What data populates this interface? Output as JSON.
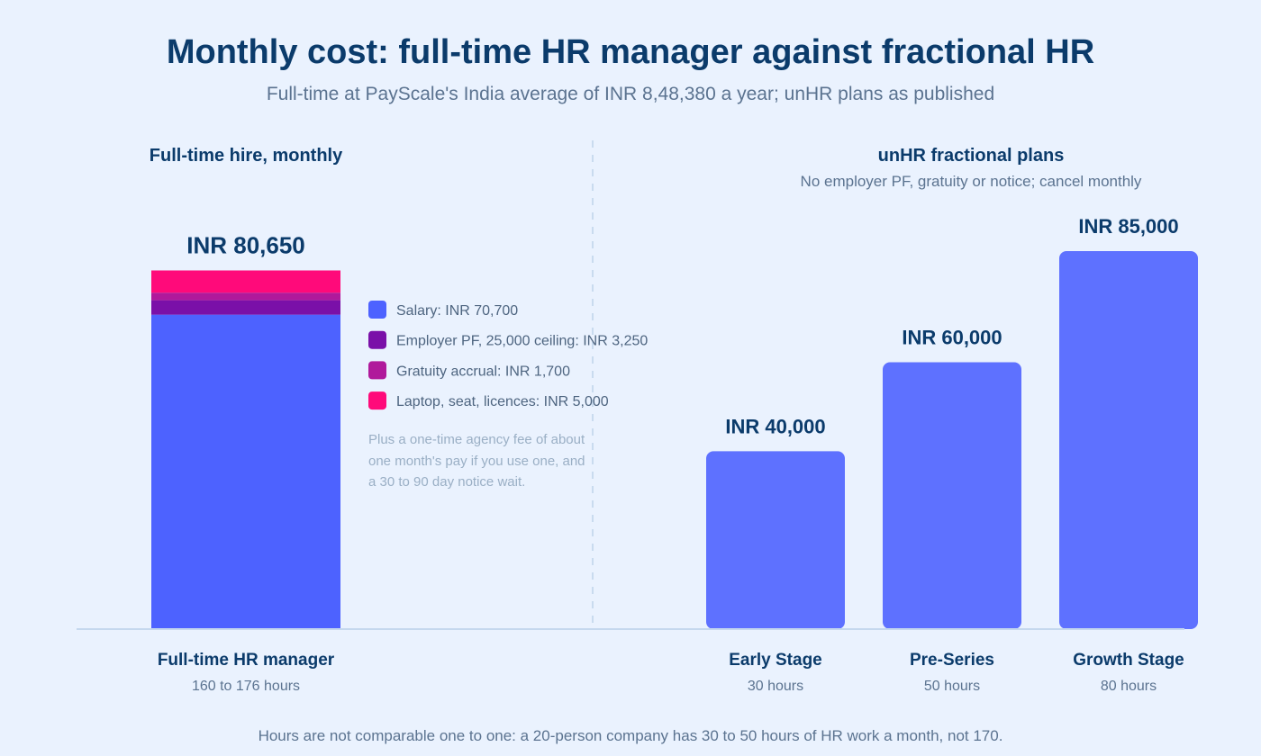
{
  "chart_data": {
    "type": "bar",
    "title": "Monthly cost: full-time HR manager against fractional HR",
    "subtitle": "Full-time at PayScale's India average of INR 8,48,380 a year; unHR plans as published",
    "footnote": "Hours are not comparable one to one: a 20-person company has 30 to 50 hours of HR work a month, not 170.",
    "ylim": [
      0,
      85000
    ],
    "grid": false,
    "colors": {
      "background": "#EAF2FE",
      "plan_bar": "#5E71FF",
      "divider": "#C9DBEF",
      "baseline": "#C5D8EE"
    },
    "fulltime_panel": {
      "heading": "Full-time hire, monthly",
      "category": "Full-time HR manager",
      "hours": "160 to 176 hours",
      "total": 80650,
      "total_label": "INR 80,650",
      "components": [
        {
          "name": "Salary: INR 70,700",
          "value": 70700,
          "color": "#4D62FF"
        },
        {
          "name": "Employer PF, 25,000 ceiling: INR 3,250",
          "value": 3250,
          "color": "#7A10A8"
        },
        {
          "name": "Gratuity accrual: INR 1,700",
          "value": 1700,
          "color": "#B0199B"
        },
        {
          "name": "Laptop, seat, licences: INR 5,000",
          "value": 5000,
          "color": "#FF0A7A"
        }
      ],
      "aside_lines": [
        "Plus a one-time agency fee of about",
        "one month's pay if you use one, and",
        "a 30 to 90 day notice wait."
      ]
    },
    "plans_panel": {
      "heading": "unHR fractional plans",
      "note": "No employer PF, gratuity or notice; cancel monthly",
      "plans": [
        {
          "category": "Early Stage",
          "hours": "30 hours",
          "value": 40000,
          "label": "INR 40,000"
        },
        {
          "category": "Pre-Series",
          "hours": "50 hours",
          "value": 60000,
          "label": "INR 60,000"
        },
        {
          "category": "Growth Stage",
          "hours": "80 hours",
          "value": 85000,
          "label": "INR 85,000"
        }
      ]
    }
  }
}
